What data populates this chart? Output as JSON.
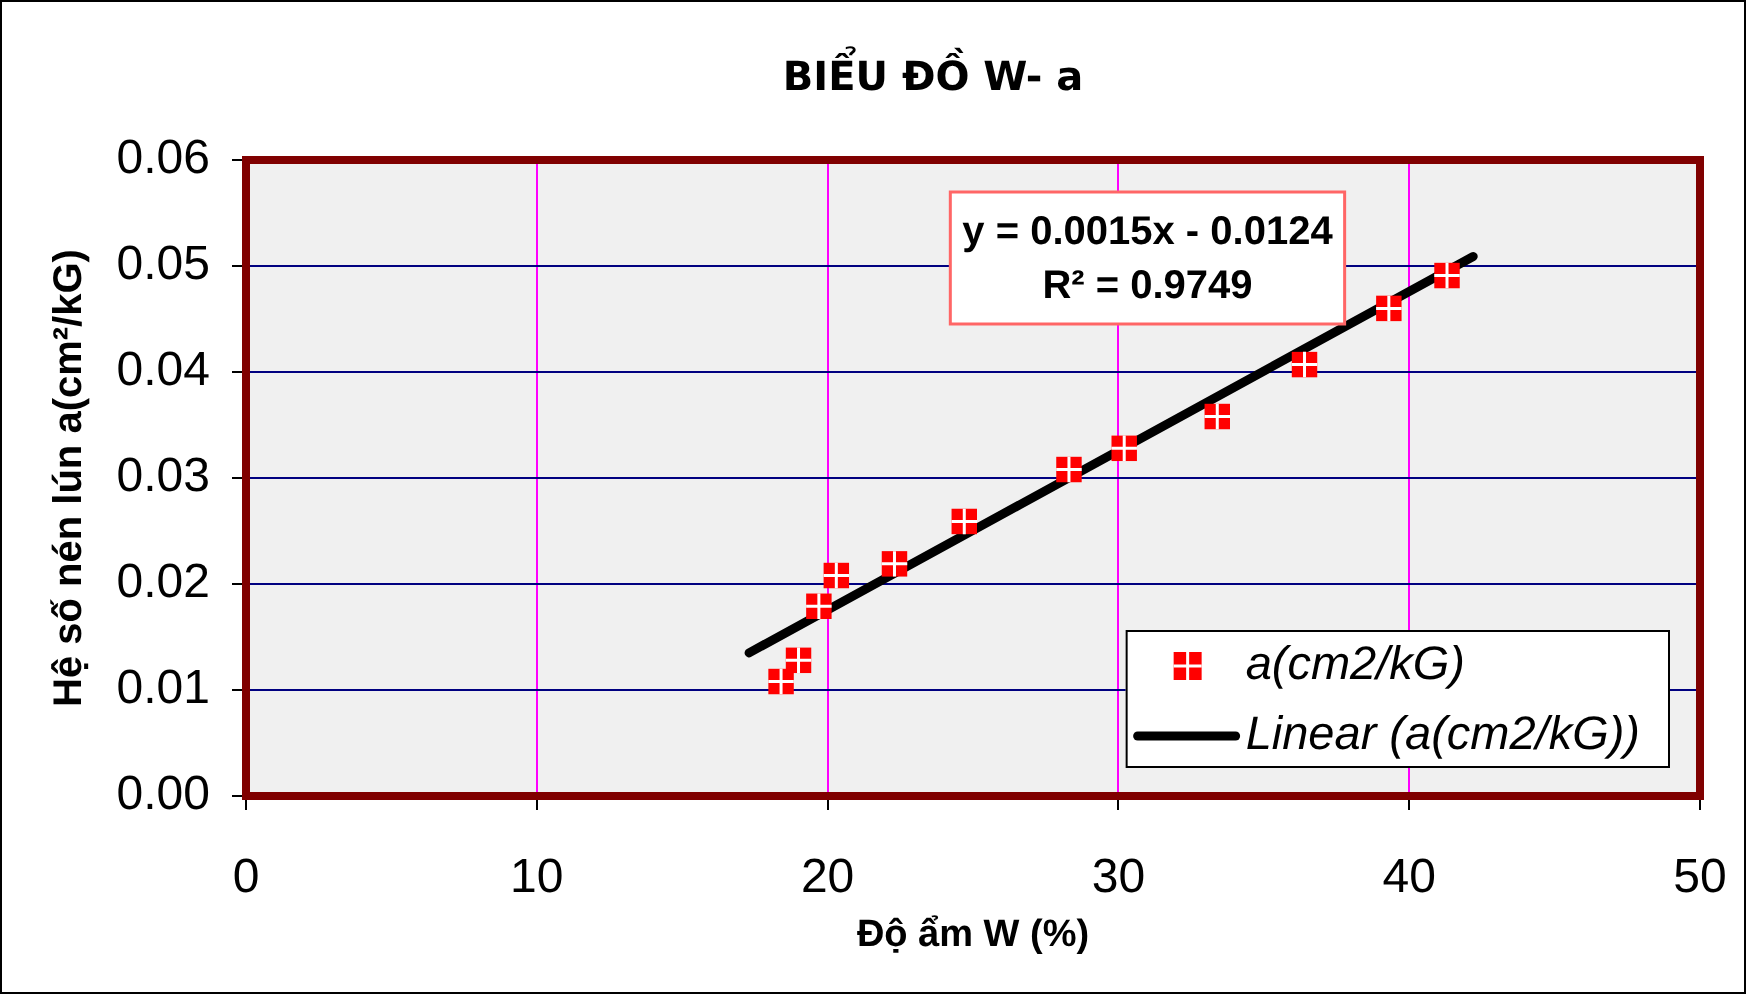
{
  "chart_data": {
    "type": "scatter",
    "title": "BIỂU ĐỒ W- a",
    "xlabel": "Độ ẩm W (%)",
    "ylabel": "Hệ số nén lún a(cm²/kG)",
    "series": [
      {
        "name": "a(cm2/kG)",
        "color": "#ff0000",
        "x": [
          18.4,
          19.0,
          19.7,
          20.3,
          22.3,
          24.7,
          28.3,
          30.2,
          33.4,
          36.4,
          39.3,
          41.3
        ],
        "values": [
          0.0108,
          0.0128,
          0.0179,
          0.0208,
          0.0219,
          0.0259,
          0.0308,
          0.0328,
          0.0358,
          0.0407,
          0.046,
          0.0491
        ]
      },
      {
        "name": "Linear (a(cm2/kG))",
        "type": "line",
        "color": "#000000",
        "x": [
          17.3,
          42.2
        ],
        "values": [
          0.0135,
          0.0509
        ],
        "marker": "none",
        "line_style": "solid"
      }
    ],
    "xlim": [
      0,
      50
    ],
    "ylim": [
      0,
      0.06
    ],
    "xticks": [
      0,
      10,
      20,
      30,
      40,
      50
    ],
    "yticks": [
      {
        "value": 0,
        "label": "0.00"
      },
      0.01,
      0.02,
      0.03,
      0.04,
      0.05,
      0.06
    ],
    "grid": true,
    "legend": "bottom right",
    "marker": "square",
    "annotations": [
      "y = 0.0015x - 0.0124",
      "R² = 0.9749"
    ]
  }
}
